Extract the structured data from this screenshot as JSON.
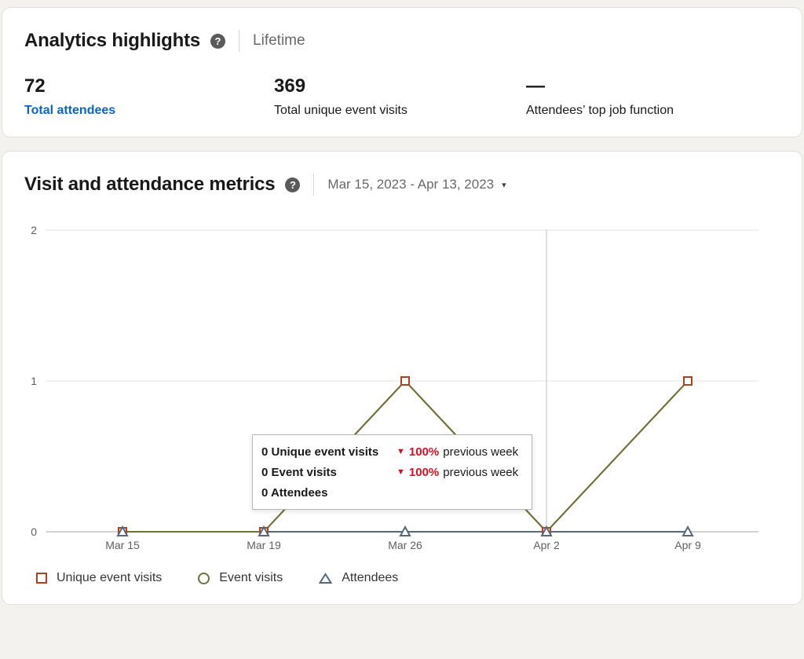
{
  "highlights": {
    "title": "Analytics highlights",
    "help_glyph": "?",
    "period": "Lifetime",
    "stats": [
      {
        "value": "72",
        "label": "Total attendees"
      },
      {
        "value": "369",
        "label": "Total unique event visits"
      },
      {
        "value": "—",
        "label": "Attendees’ top job function"
      }
    ]
  },
  "metrics": {
    "title": "Visit and attendance metrics",
    "help_glyph": "?",
    "date_range": "Mar 15, 2023 - Apr 13, 2023",
    "caret_glyph": "▾"
  },
  "tooltip": {
    "rows": [
      {
        "label": "0 Unique event visits",
        "arrow": "▼",
        "delta": "100%",
        "suffix": "previous week"
      },
      {
        "label": "0 Event visits",
        "arrow": "▼",
        "delta": "100%",
        "suffix": "previous week"
      },
      {
        "label": "0 Attendees",
        "arrow": "",
        "delta": "",
        "suffix": ""
      }
    ]
  },
  "chart_data": {
    "type": "line",
    "title": "Visit and attendance metrics",
    "categories": [
      "Mar 15",
      "Mar 19",
      "Mar 26",
      "Apr 2",
      "Apr 9"
    ],
    "series": [
      {
        "name": "Unique event visits",
        "marker": "square",
        "color": "#b24020",
        "values": [
          0,
          0,
          1,
          0,
          1
        ]
      },
      {
        "name": "Event visits",
        "marker": "circle",
        "color": "#6b7339",
        "values": [
          0,
          0,
          1,
          0,
          1
        ]
      },
      {
        "name": "Attendees",
        "marker": "triangle",
        "color": "#56687b",
        "values": [
          0,
          0,
          0,
          0,
          0
        ]
      }
    ],
    "ylim": [
      0,
      2
    ],
    "yticks": [
      0,
      1,
      2
    ],
    "hover_category": "Apr 2",
    "grid": "horizontal",
    "legend_position": "bottom"
  },
  "colors": {
    "link_blue": "#0a66c2",
    "negative_red": "#d11124",
    "card_bg": "#ffffff",
    "page_bg": "#f3f2ef"
  }
}
